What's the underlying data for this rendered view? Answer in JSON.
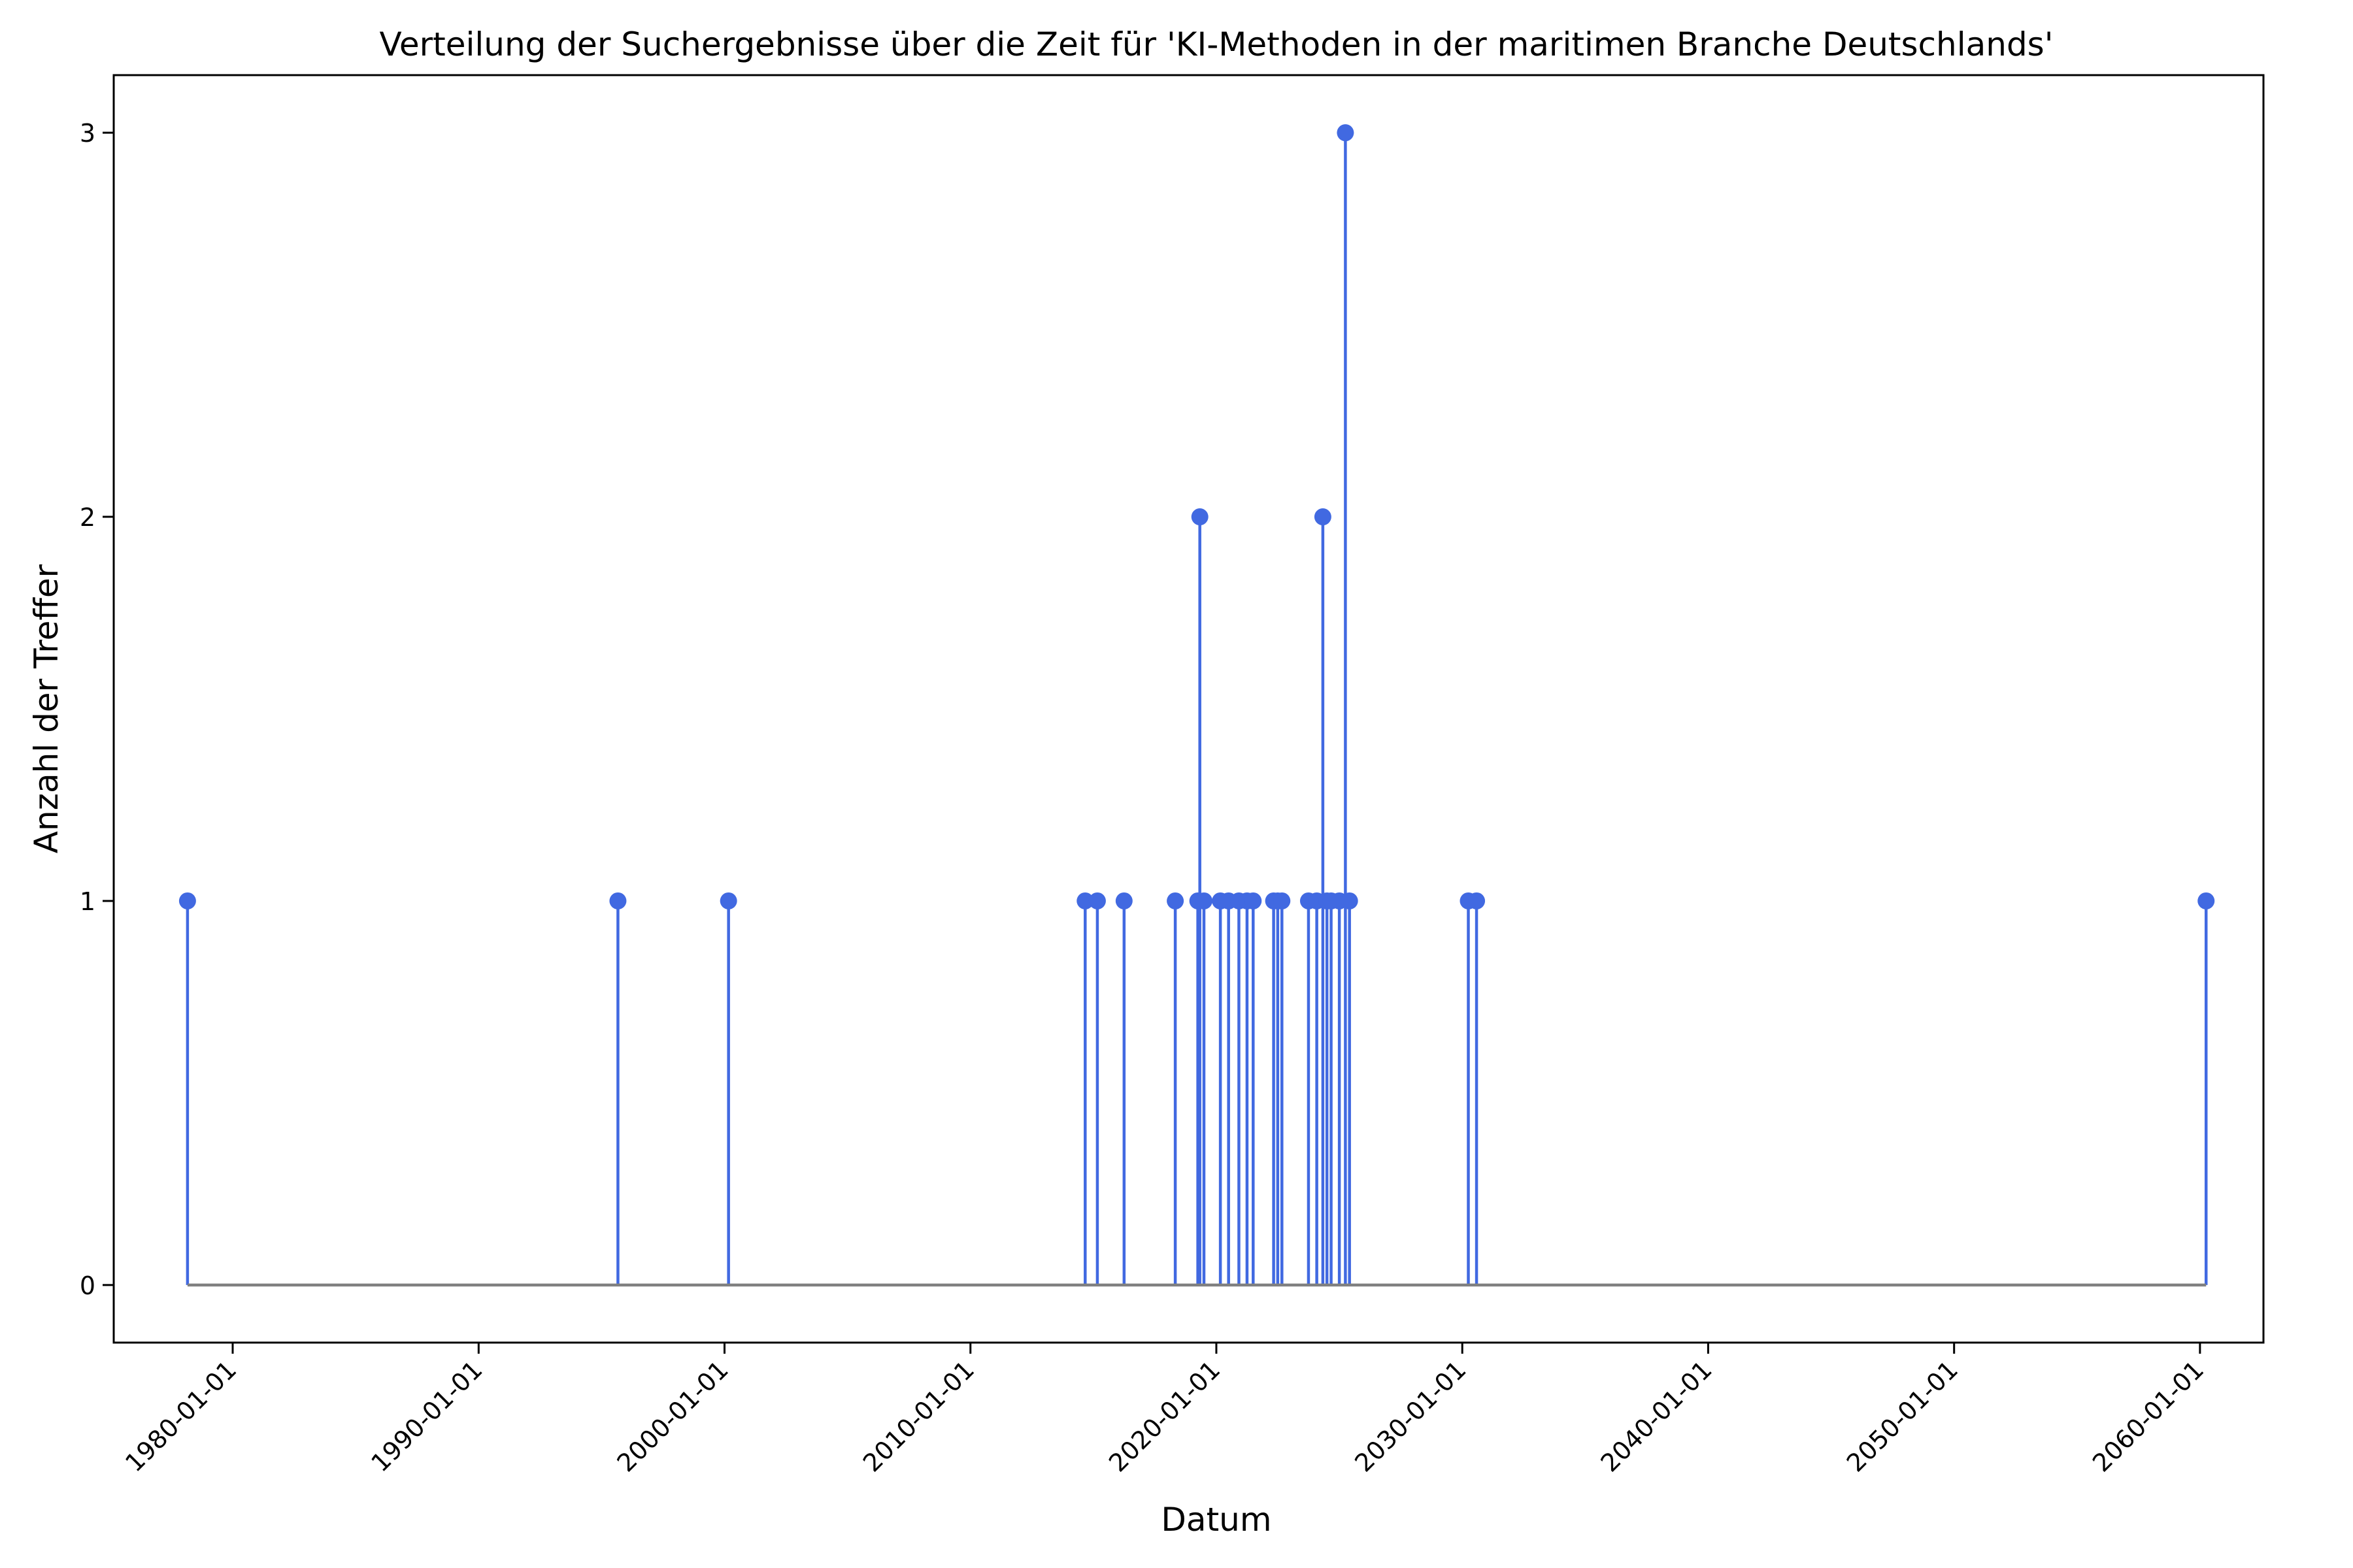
{
  "chart_data": {
    "type": "stem",
    "title": "Verteilung der Suchergebnisse über die Zeit für 'KI-Methoden in der maritimen Branche Deutschlands'",
    "xlabel": "Datum",
    "ylabel": "Anzahl der Treffer",
    "x_is_date": true,
    "xlim": [
      "1975-03-01",
      "2062-08-01"
    ],
    "ylim": [
      -0.15,
      3.15
    ],
    "grid": false,
    "x_ticks": [
      "1980-01-01",
      "1990-01-01",
      "2000-01-01",
      "2010-01-01",
      "2020-01-01",
      "2030-01-01",
      "2040-01-01",
      "2050-01-01",
      "2060-01-01"
    ],
    "y_ticks": [
      0,
      1,
      2,
      3
    ],
    "colors": {
      "stem": "#4169e1",
      "baseline": "#808080"
    },
    "points": [
      {
        "x": "1978-03-01",
        "y": 1
      },
      {
        "x": "1995-09-01",
        "y": 1
      },
      {
        "x": "2000-03-01",
        "y": 1
      },
      {
        "x": "2014-09-01",
        "y": 1
      },
      {
        "x": "2015-03-01",
        "y": 1
      },
      {
        "x": "2016-04-01",
        "y": 1
      },
      {
        "x": "2018-05-01",
        "y": 1
      },
      {
        "x": "2019-04-01",
        "y": 1
      },
      {
        "x": "2019-05-01",
        "y": 2
      },
      {
        "x": "2019-07-01",
        "y": 1
      },
      {
        "x": "2020-03-01",
        "y": 1
      },
      {
        "x": "2020-07-01",
        "y": 1
      },
      {
        "x": "2020-12-01",
        "y": 1
      },
      {
        "x": "2021-04-01",
        "y": 1
      },
      {
        "x": "2021-07-01",
        "y": 1
      },
      {
        "x": "2022-05-01",
        "y": 1
      },
      {
        "x": "2022-07-01",
        "y": 1
      },
      {
        "x": "2022-09-01",
        "y": 1
      },
      {
        "x": "2023-10-01",
        "y": 1
      },
      {
        "x": "2024-02-01",
        "y": 1
      },
      {
        "x": "2024-05-01",
        "y": 2
      },
      {
        "x": "2024-07-01",
        "y": 1
      },
      {
        "x": "2024-09-01",
        "y": 1
      },
      {
        "x": "2025-01-01",
        "y": 1
      },
      {
        "x": "2025-04-01",
        "y": 3
      },
      {
        "x": "2025-06-01",
        "y": 1
      },
      {
        "x": "2030-04-01",
        "y": 1
      },
      {
        "x": "2030-08-01",
        "y": 1
      },
      {
        "x": "2060-04-01",
        "y": 1
      }
    ]
  }
}
